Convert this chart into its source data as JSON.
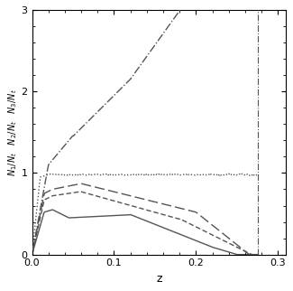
{
  "xlim": [
    0.0,
    0.31
  ],
  "ylim": [
    0.0,
    3.0
  ],
  "xlabel": "z",
  "ylabel": "N_1/N_t    N_2/N_t    N_3/N_t",
  "xticks": [
    0.0,
    0.1,
    0.2,
    0.3
  ],
  "yticks": [
    0,
    1,
    2,
    3
  ],
  "background_color": "#f0f0f0",
  "line_color": "#555555",
  "vertical_line_x": 0.275
}
